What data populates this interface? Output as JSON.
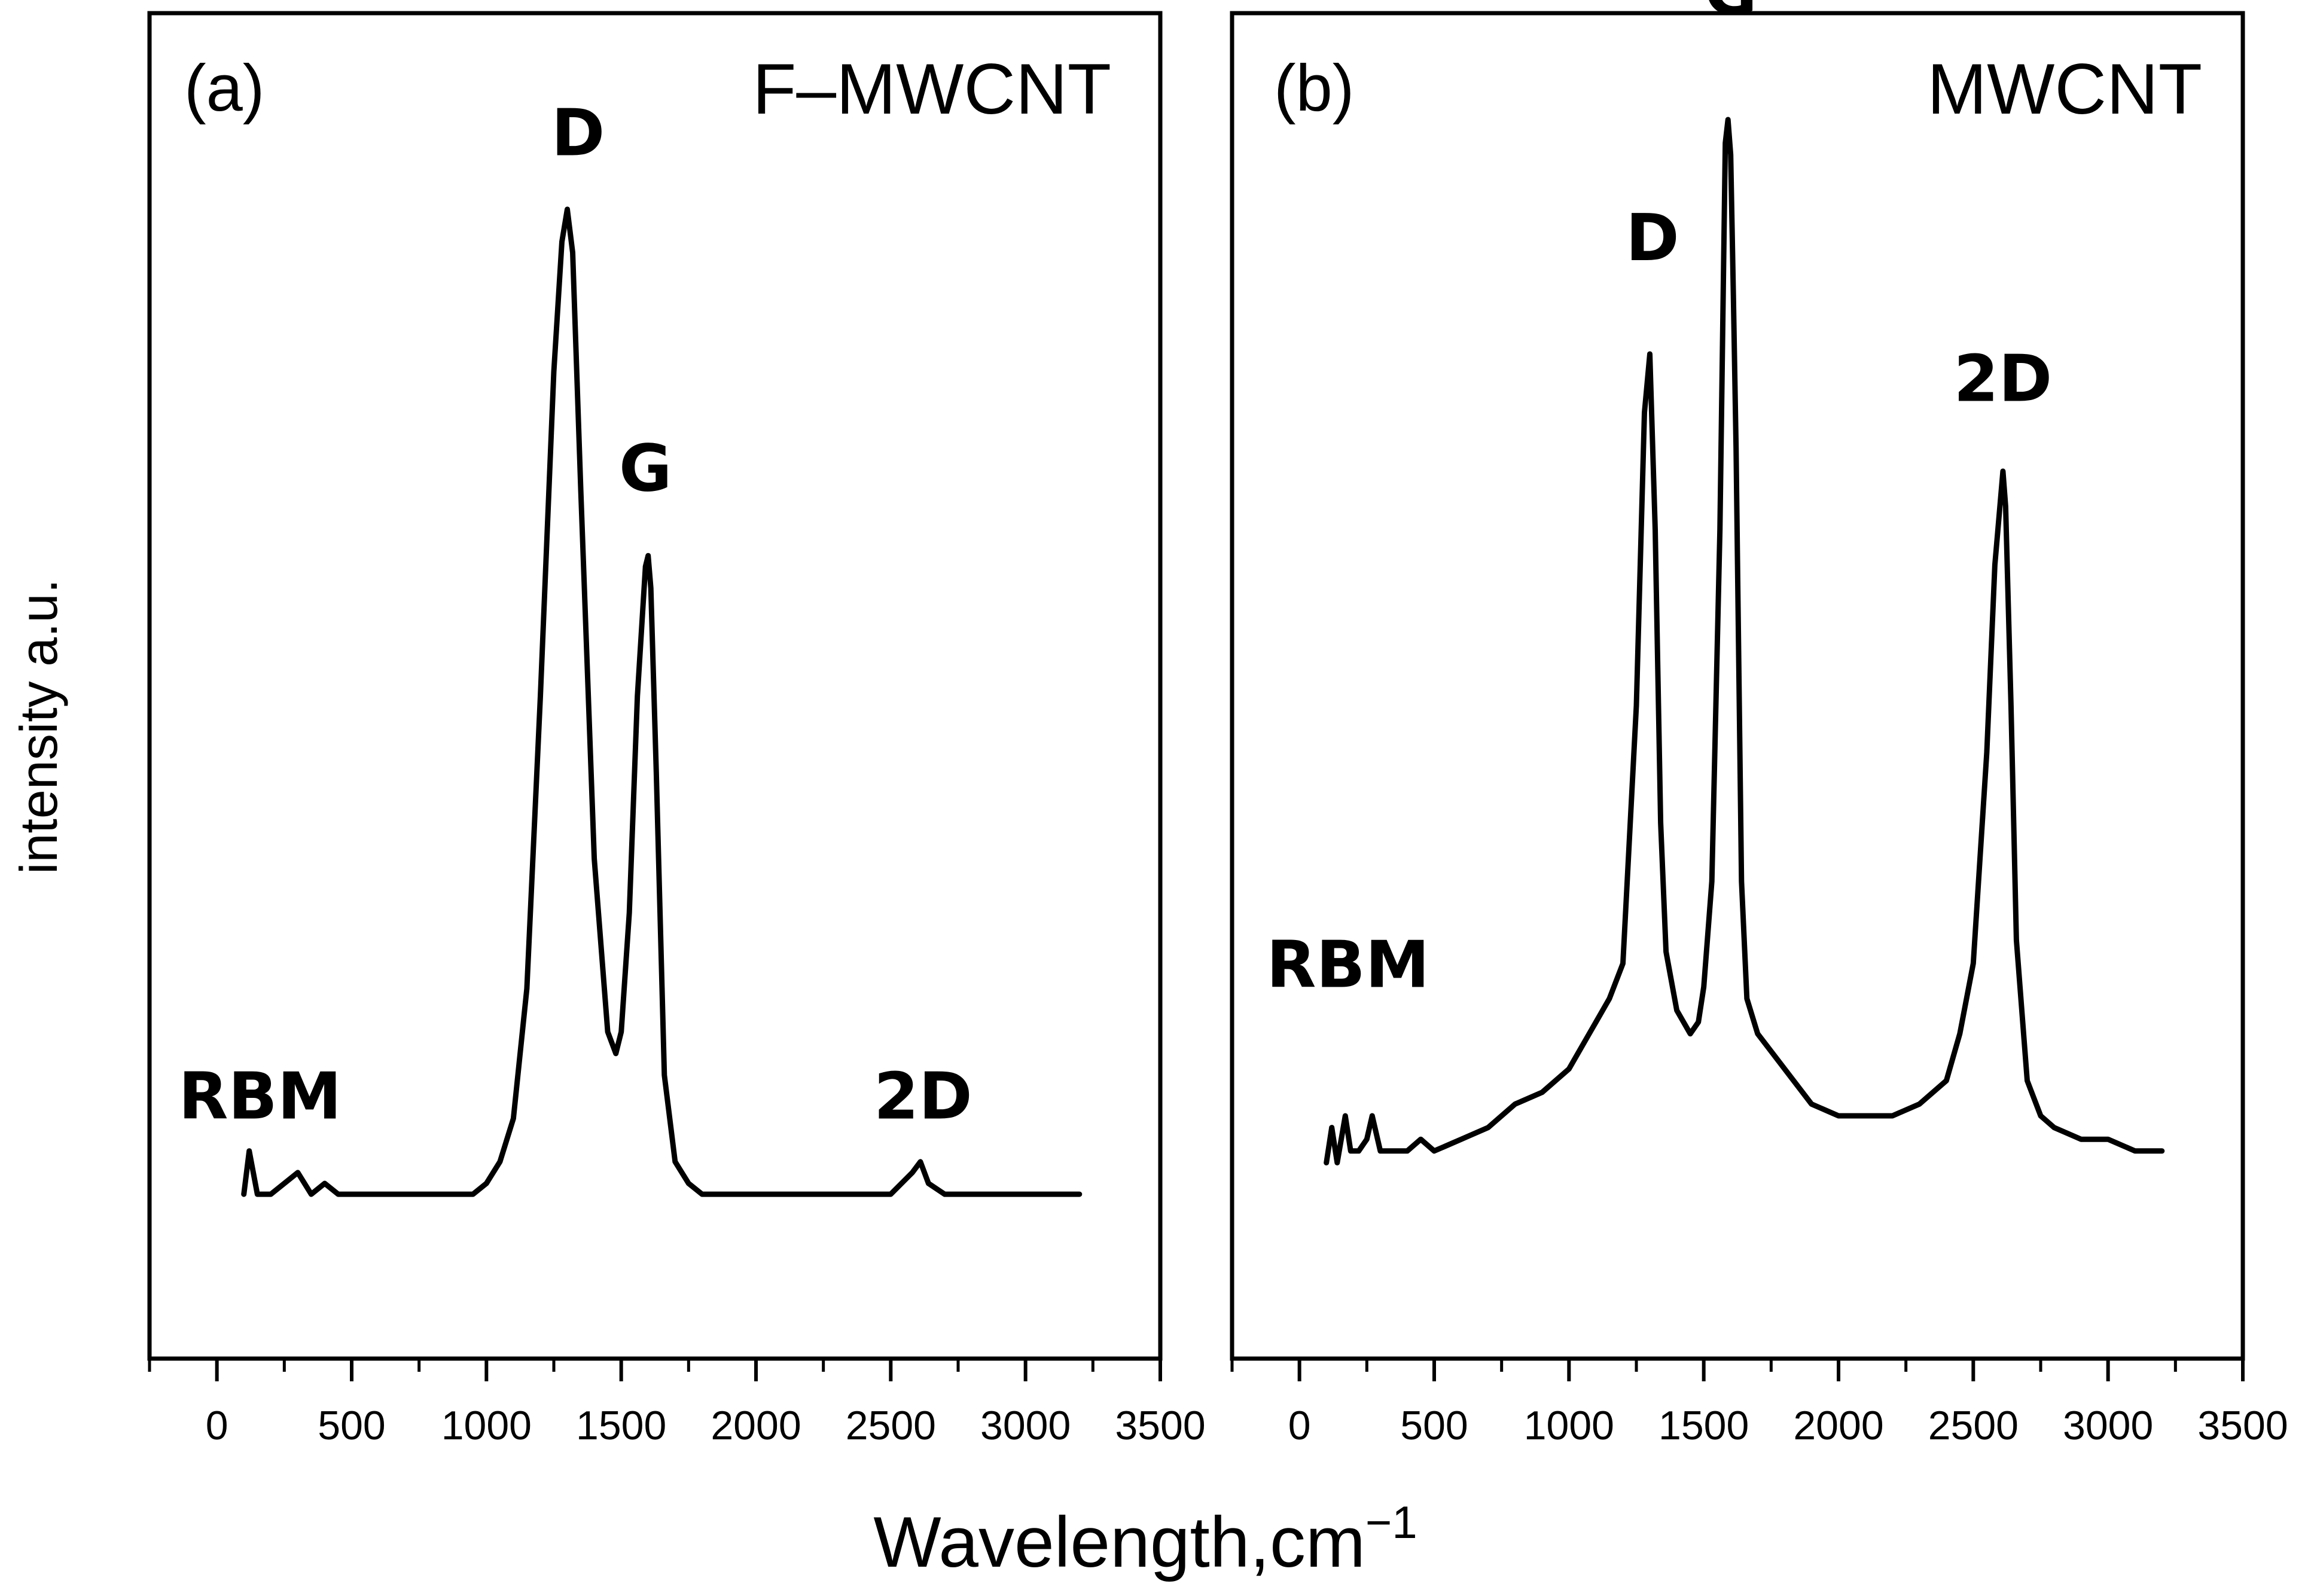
{
  "chart_data": [
    {
      "type": "line",
      "panel_label": "(a)",
      "sample": "F–MWCNT",
      "xlim": [
        -250,
        3500
      ],
      "ylim": [
        0,
        1
      ],
      "x_ticks": [
        0,
        500,
        1000,
        1500,
        2000,
        2500,
        3000,
        3500
      ],
      "x_tick_labels": [
        "0",
        "500",
        "1000",
        "1500",
        "2000",
        "2500",
        "3000",
        "3500"
      ],
      "y_ticks_shown": false,
      "series": [
        {
          "name": "F–MWCNT spectrum",
          "x": [
            100,
            120,
            150,
            200,
            300,
            350,
            400,
            450,
            500,
            600,
            700,
            800,
            900,
            950,
            1000,
            1050,
            1100,
            1150,
            1200,
            1250,
            1280,
            1300,
            1320,
            1350,
            1400,
            1450,
            1480,
            1500,
            1530,
            1560,
            1590,
            1600,
            1610,
            1630,
            1660,
            1700,
            1750,
            1800,
            2000,
            2500,
            2580,
            2610,
            2640,
            2700,
            2800,
            3000,
            3200
          ],
          "y": [
            0.09,
            0.13,
            0.09,
            0.09,
            0.11,
            0.09,
            0.1,
            0.09,
            0.09,
            0.09,
            0.09,
            0.09,
            0.09,
            0.09,
            0.1,
            0.12,
            0.16,
            0.28,
            0.55,
            0.85,
            0.97,
            1.0,
            0.96,
            0.74,
            0.4,
            0.24,
            0.22,
            0.24,
            0.35,
            0.55,
            0.67,
            0.68,
            0.65,
            0.48,
            0.2,
            0.12,
            0.1,
            0.09,
            0.09,
            0.09,
            0.11,
            0.12,
            0.1,
            0.09,
            0.09,
            0.09,
            0.09
          ]
        }
      ],
      "annotations": [
        {
          "text": "D",
          "x": 1340,
          "y": 1.05
        },
        {
          "text": "G",
          "x": 1590,
          "y": 0.74
        },
        {
          "text": "RBM",
          "x": 160,
          "y": 0.16
        },
        {
          "text": "2D",
          "x": 2620,
          "y": 0.16
        }
      ]
    },
    {
      "type": "line",
      "panel_label": "(b)",
      "sample": "MWCNT",
      "xlim": [
        -250,
        3500
      ],
      "ylim": [
        0,
        1
      ],
      "x_ticks": [
        0,
        500,
        1000,
        1500,
        2000,
        2500,
        3000,
        3500
      ],
      "x_tick_labels": [
        "0",
        "500",
        "1000",
        "1500",
        "2000",
        "2500",
        "3000",
        "3500"
      ],
      "y_ticks_shown": false,
      "series": [
        {
          "name": "MWCNT spectrum",
          "x": [
            100,
            120,
            140,
            170,
            190,
            220,
            250,
            270,
            300,
            350,
            400,
            450,
            500,
            600,
            700,
            800,
            900,
            1000,
            1100,
            1150,
            1200,
            1250,
            1280,
            1300,
            1320,
            1340,
            1360,
            1400,
            1450,
            1480,
            1500,
            1530,
            1560,
            1580,
            1590,
            1600,
            1610,
            1620,
            1640,
            1660,
            1700,
            1800,
            1900,
            2000,
            2100,
            2200,
            2300,
            2400,
            2450,
            2500,
            2550,
            2580,
            2610,
            2620,
            2640,
            2660,
            2700,
            2750,
            2800,
            2900,
            3000,
            3100,
            3200
          ],
          "y": [
            0.11,
            0.14,
            0.11,
            0.15,
            0.12,
            0.12,
            0.13,
            0.15,
            0.12,
            0.12,
            0.12,
            0.13,
            0.12,
            0.13,
            0.14,
            0.16,
            0.17,
            0.19,
            0.23,
            0.25,
            0.28,
            0.5,
            0.75,
            0.8,
            0.65,
            0.4,
            0.29,
            0.24,
            0.22,
            0.23,
            0.26,
            0.35,
            0.65,
            0.98,
            1.0,
            0.97,
            0.85,
            0.72,
            0.35,
            0.25,
            0.22,
            0.19,
            0.16,
            0.15,
            0.15,
            0.15,
            0.16,
            0.18,
            0.22,
            0.28,
            0.46,
            0.62,
            0.7,
            0.67,
            0.5,
            0.3,
            0.18,
            0.15,
            0.14,
            0.13,
            0.13,
            0.12,
            0.12
          ]
        }
      ],
      "annotations": [
        {
          "text": "D",
          "x": 1310,
          "y": 0.88
        },
        {
          "text": "G",
          "x": 1600,
          "y": 1.09
        },
        {
          "text": "RBM",
          "x": 180,
          "y": 0.26
        },
        {
          "text": "2D",
          "x": 2610,
          "y": 0.76
        }
      ]
    }
  ],
  "labels": {
    "y_axis": "intensity a.u.",
    "x_axis_main": "Wavelength,cm",
    "x_axis_sup": "−1"
  }
}
